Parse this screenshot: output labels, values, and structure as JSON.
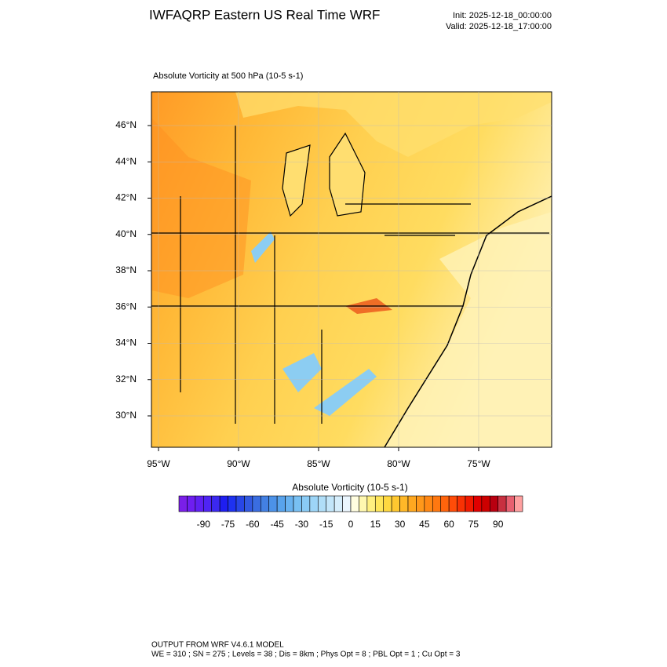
{
  "header": {
    "title": "IWFAQRP Eastern US Real Time WRF",
    "init": "Init: 2025-12-18_00:00:00",
    "valid": "Valid: 2025-12-18_17:00:00"
  },
  "map": {
    "title": "Absolute Vorticity at 500 hPa   (10-5 s-1)",
    "lonlim": [
      -95.44,
      -70.44
    ],
    "latlim": [
      28.27,
      47.86
    ],
    "lonticks": [
      {
        "value": -95,
        "label": "95°W"
      },
      {
        "value": -90,
        "label": "90°W"
      },
      {
        "value": -85,
        "label": "85°W"
      },
      {
        "value": -80,
        "label": "80°W"
      },
      {
        "value": -75,
        "label": "75°W"
      }
    ],
    "latticks": [
      {
        "value": 30,
        "label": "30°N"
      },
      {
        "value": 32,
        "label": "32°N"
      },
      {
        "value": 34,
        "label": "34°N"
      },
      {
        "value": 36,
        "label": "36°N"
      },
      {
        "value": 38,
        "label": "38°N"
      },
      {
        "value": 40,
        "label": "40°N"
      },
      {
        "value": 42,
        "label": "42°N"
      },
      {
        "value": 44,
        "label": "44°N"
      },
      {
        "value": 46,
        "label": "46°N"
      }
    ]
  },
  "colorbar": {
    "label": "Absolute Vorticity  (10-5 s-1)",
    "lim": [
      -105,
      105
    ],
    "ticks": [
      -90,
      -75,
      -60,
      -45,
      -30,
      -15,
      0,
      15,
      30,
      45,
      60,
      75,
      90
    ],
    "colors": [
      "#7a1fe8",
      "#6e1ef0",
      "#5f20f2",
      "#4f24f4",
      "#3b28f0",
      "#1e1ef0",
      "#1e32f0",
      "#2846e6",
      "#3259e0",
      "#3a6de0",
      "#4380e3",
      "#4c92e8",
      "#58a3ec",
      "#68b2f0",
      "#78c0f3",
      "#8acbf5",
      "#9dd5f7",
      "#b0def8",
      "#c3e6fa",
      "#d6eefc",
      "#ebf6fe",
      "#fffde0",
      "#fff8b0",
      "#fff080",
      "#ffe65a",
      "#ffd840",
      "#ffc830",
      "#ffb828",
      "#ffa820",
      "#ff981a",
      "#ff8814",
      "#ff7810",
      "#ff640c",
      "#ff4c08",
      "#f83204",
      "#f01a00",
      "#e00000",
      "#cc0000",
      "#b80010",
      "#c83040",
      "#e86070",
      "#ffa0a0"
    ]
  },
  "footer": {
    "line1": "OUTPUT FROM WRF V4.6.1 MODEL",
    "line2": "WE = 310 ; SN = 275 ; Levels = 38 ; Dis = 8km ; Phys Opt = 8 ; PBL Opt = 1 ; Cu Opt = 3"
  }
}
